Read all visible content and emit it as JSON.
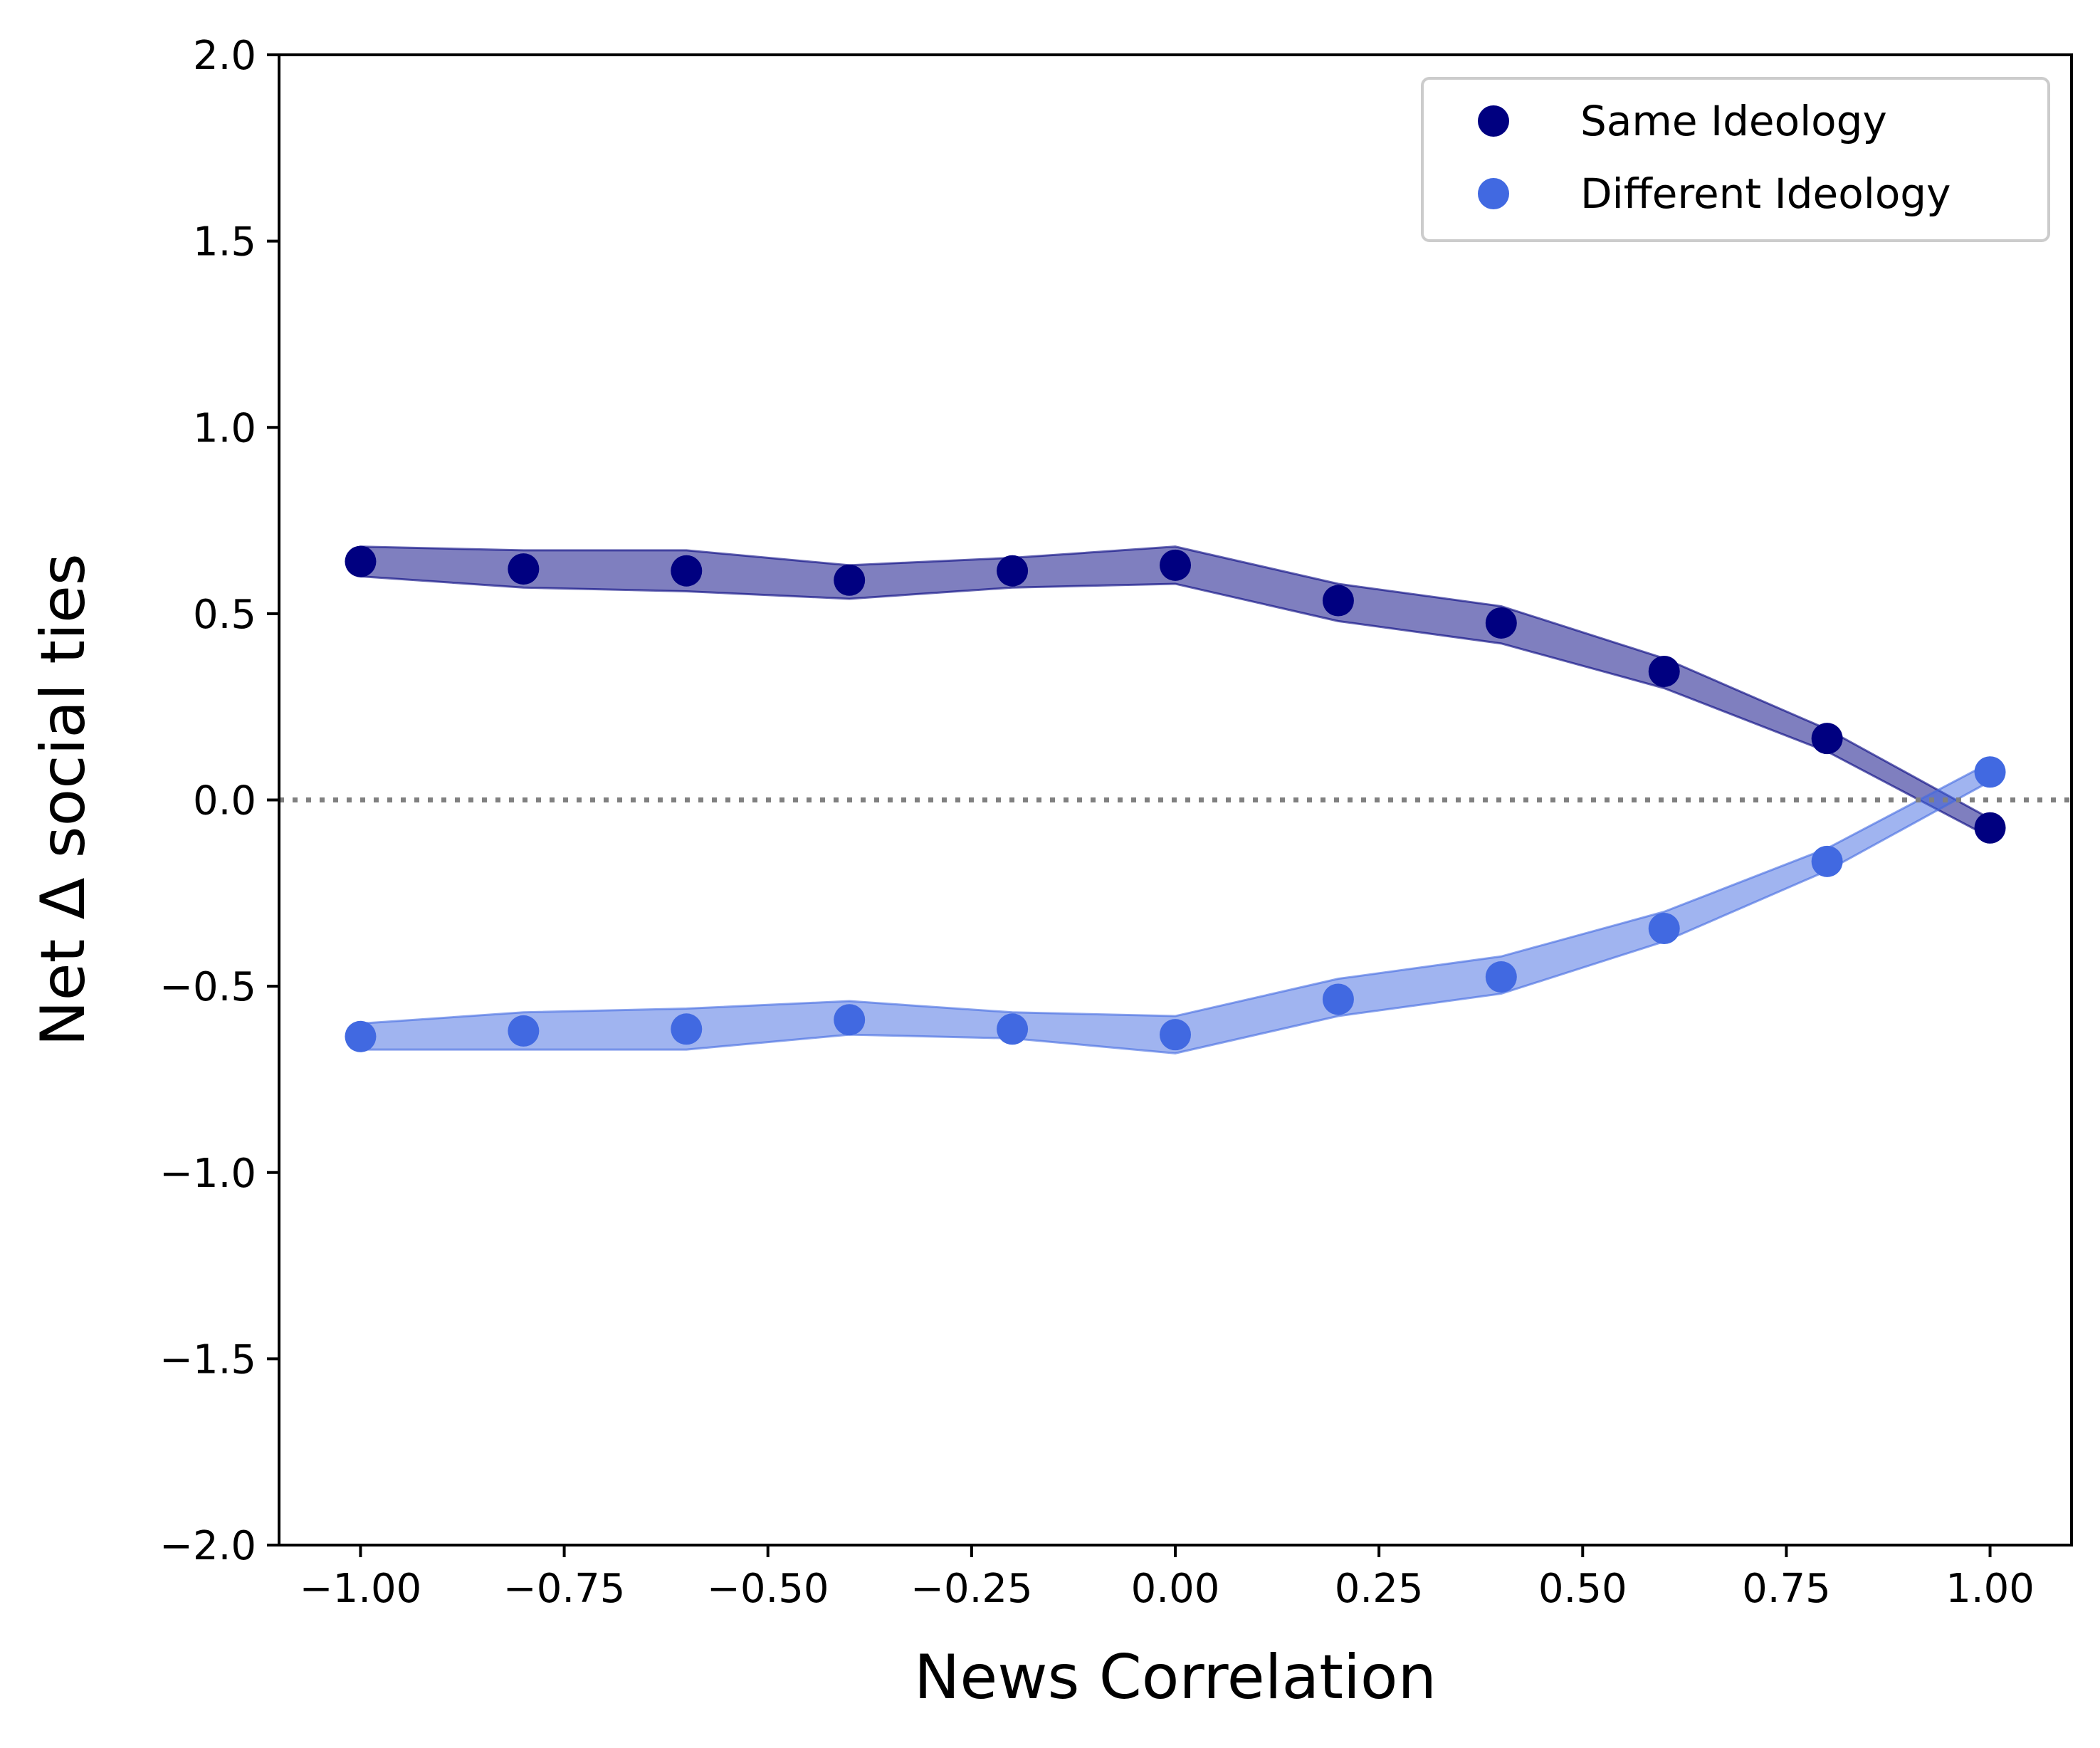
{
  "chart_data": {
    "type": "scatter",
    "xlabel": "News Correlation",
    "ylabel": "Net Δ social ties",
    "xlim": [
      -1.1,
      1.1
    ],
    "ylim": [
      -2.0,
      2.0
    ],
    "x_ticks": [
      -1.0,
      -0.75,
      -0.5,
      -0.25,
      0.0,
      0.25,
      0.5,
      0.75,
      1.0
    ],
    "x_tick_labels": [
      "−1.00",
      "−0.75",
      "−0.50",
      "−0.25",
      "0.00",
      "0.25",
      "0.50",
      "0.75",
      "1.00"
    ],
    "y_ticks": [
      -2.0,
      -1.5,
      -1.0,
      -0.5,
      0.0,
      0.5,
      1.0,
      1.5,
      2.0
    ],
    "y_tick_labels": [
      "−2.0",
      "−1.5",
      "−1.0",
      "−0.5",
      "0.0",
      "0.5",
      "1.0",
      "1.5",
      "2.0"
    ],
    "reference_line": {
      "y": 0.0,
      "style": "dotted",
      "color": "#808080"
    },
    "grid": false,
    "legend_position": "top-right",
    "x": [
      -1.0,
      -0.8,
      -0.6,
      -0.4,
      -0.2,
      0.0,
      0.2,
      0.4,
      0.6,
      0.8,
      1.0
    ],
    "series": [
      {
        "name": "Same Ideology",
        "color": "#000080",
        "band_color": "#00007f",
        "values": [
          0.64,
          0.62,
          0.615,
          0.59,
          0.615,
          0.63,
          0.535,
          0.475,
          0.345,
          0.165,
          -0.075
        ],
        "band_lower": [
          0.6,
          0.57,
          0.56,
          0.54,
          0.57,
          0.58,
          0.48,
          0.42,
          0.3,
          0.13,
          -0.1
        ],
        "band_upper": [
          0.68,
          0.67,
          0.67,
          0.63,
          0.65,
          0.68,
          0.58,
          0.52,
          0.38,
          0.19,
          -0.05
        ]
      },
      {
        "name": "Different Ideology",
        "color": "#4169E1",
        "band_color": "#4169e1",
        "values": [
          -0.635,
          -0.62,
          -0.615,
          -0.59,
          -0.615,
          -0.63,
          -0.535,
          -0.475,
          -0.345,
          -0.165,
          0.075
        ],
        "band_lower": [
          -0.67,
          -0.67,
          -0.67,
          -0.63,
          -0.64,
          -0.68,
          -0.58,
          -0.52,
          -0.38,
          -0.19,
          0.05
        ],
        "band_upper": [
          -0.6,
          -0.57,
          -0.56,
          -0.54,
          -0.57,
          -0.58,
          -0.48,
          -0.42,
          -0.3,
          -0.13,
          0.1
        ]
      }
    ]
  }
}
